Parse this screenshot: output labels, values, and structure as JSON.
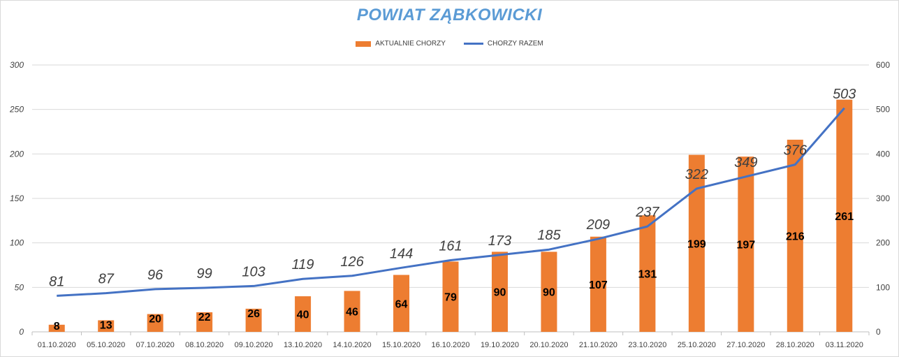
{
  "chart_data": {
    "type": "bar",
    "title": "POWIAT ZĄBKOWICKI",
    "categories": [
      "01.10.2020",
      "05.10.2020",
      "07.10.2020",
      "08.10.2020",
      "09.10.2020",
      "13.10.2020",
      "14.10.2020",
      "15.10.2020",
      "16.10.2020",
      "19.10.2020",
      "20.10.2020",
      "21.10.2020",
      "23.10.2020",
      "25.10.2020",
      "27.10.2020",
      "28.10.2020",
      "03.11.2020"
    ],
    "series": [
      {
        "name": "AKTUALNIE CHORZY",
        "type": "bar",
        "axis": "left",
        "values": [
          8,
          13,
          20,
          22,
          26,
          40,
          46,
          64,
          79,
          90,
          90,
          107,
          131,
          199,
          197,
          216,
          261
        ]
      },
      {
        "name": "CHORZY RAZEM",
        "type": "line",
        "axis": "right",
        "values": [
          81,
          87,
          96,
          99,
          103,
          119,
          126,
          144,
          161,
          173,
          185,
          209,
          237,
          322,
          349,
          376,
          503
        ]
      }
    ],
    "ylim_left": [
      0,
      300
    ],
    "yticks_left": [
      "0",
      "50",
      "100",
      "150",
      "200",
      "250",
      "300"
    ],
    "ylim_right": [
      0,
      600
    ],
    "yticks_right": [
      "0",
      "100",
      "200",
      "300",
      "400",
      "500",
      "600"
    ],
    "grid": true,
    "legend_position": "top",
    "colors": {
      "bar": "#ed7d31",
      "line": "#4472c4",
      "title": "#5b9bd5"
    }
  }
}
